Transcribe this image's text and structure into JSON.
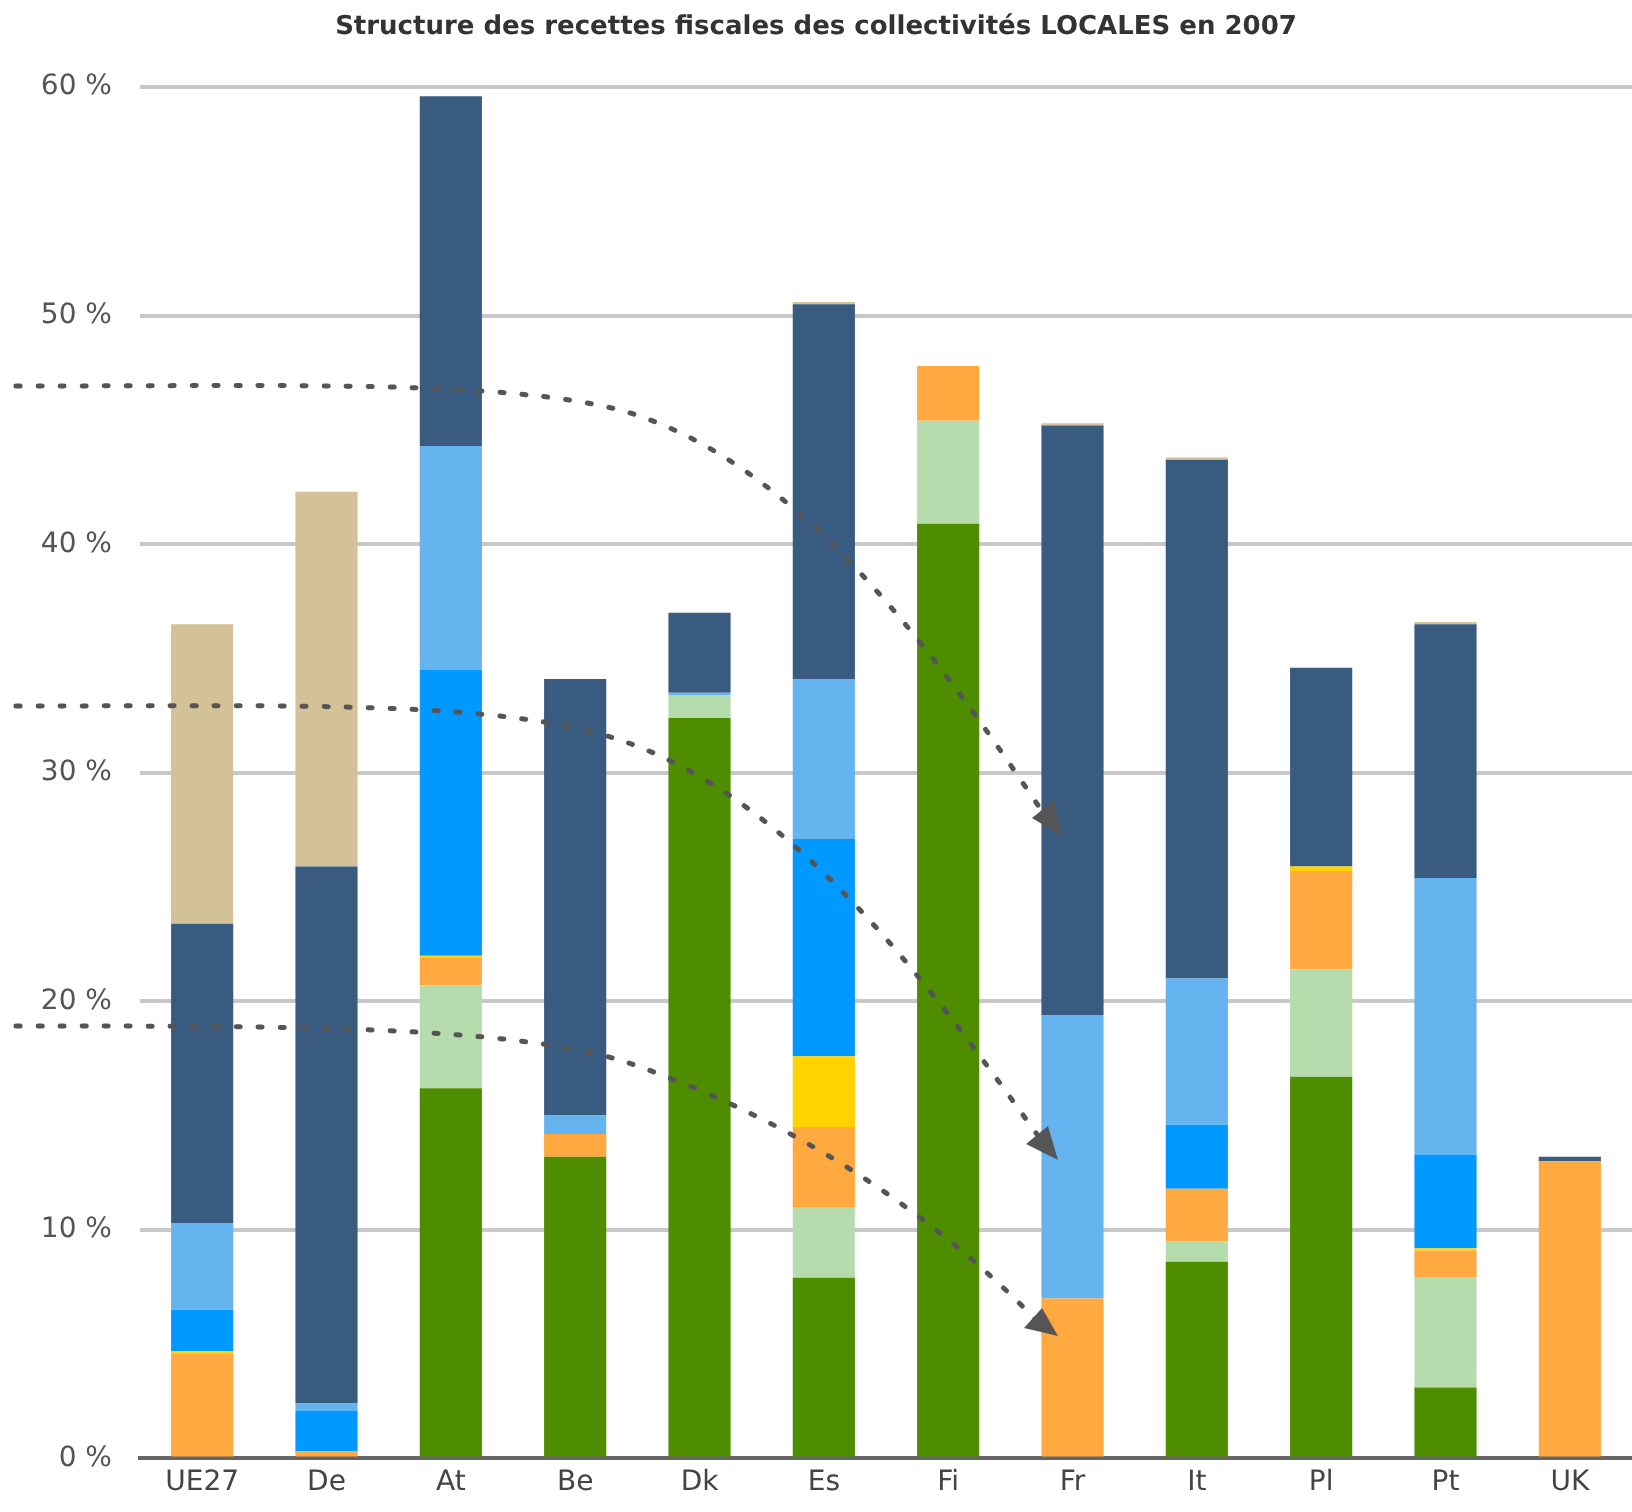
{
  "chart_data": {
    "type": "bar",
    "stacked": true,
    "title": "Structure des recettes fiscales des collectivités LOCALES en 2007",
    "categories": [
      "UE27",
      "De",
      "At",
      "Be",
      "Dk",
      "Es",
      "Fi",
      "Fr",
      "It",
      "Pl",
      "Pt",
      "UK"
    ],
    "series": [
      {
        "color": "#4e8c00",
        "values": [
          null,
          null,
          16.2,
          13.2,
          32.4,
          7.9,
          40.9,
          null,
          8.6,
          16.7,
          3.1,
          null
        ]
      },
      {
        "color": "#b6dcae",
        "values": [
          null,
          null,
          4.5,
          null,
          1.0,
          3.1,
          4.5,
          null,
          0.9,
          4.7,
          4.8,
          null
        ]
      },
      {
        "color": "#ffa940",
        "values": [
          4.6,
          0.3,
          1.2,
          1.0,
          null,
          3.5,
          2.4,
          7.0,
          2.3,
          4.3,
          1.2,
          13.0
        ]
      },
      {
        "color": "#ffd200",
        "values": [
          0.1,
          null,
          0.1,
          null,
          null,
          3.1,
          null,
          null,
          null,
          0.2,
          0.1,
          null
        ]
      },
      {
        "color": "#0099ff",
        "values": [
          1.8,
          1.8,
          12.5,
          null,
          null,
          9.5,
          null,
          null,
          2.8,
          null,
          4.1,
          null
        ]
      },
      {
        "color": "#66b4ef",
        "values": [
          3.8,
          0.3,
          9.8,
          0.8,
          0.1,
          7.0,
          null,
          12.4,
          6.4,
          null,
          12.1,
          null
        ]
      },
      {
        "color": "#3a5b80",
        "values": [
          13.1,
          23.5,
          15.3,
          19.1,
          3.5,
          16.4,
          null,
          25.8,
          22.7,
          8.7,
          11.1,
          0.2
        ]
      },
      {
        "color": "#d3c297",
        "values": [
          13.1,
          16.4,
          null,
          null,
          null,
          0.1,
          null,
          0.1,
          0.1,
          null,
          0.1,
          null
        ]
      }
    ],
    "ylim": [
      0,
      60
    ],
    "yticks": [
      {
        "value": 0,
        "label": "0 %"
      },
      {
        "value": 10,
        "label": "10 %"
      },
      {
        "value": 20,
        "label": "20 %"
      },
      {
        "value": 30,
        "label": "30 %"
      },
      {
        "value": 40,
        "label": "40 %"
      },
      {
        "value": 50,
        "label": "50 %"
      },
      {
        "value": 60,
        "label": "60 %"
      }
    ],
    "grid": "y",
    "legend": false
  }
}
